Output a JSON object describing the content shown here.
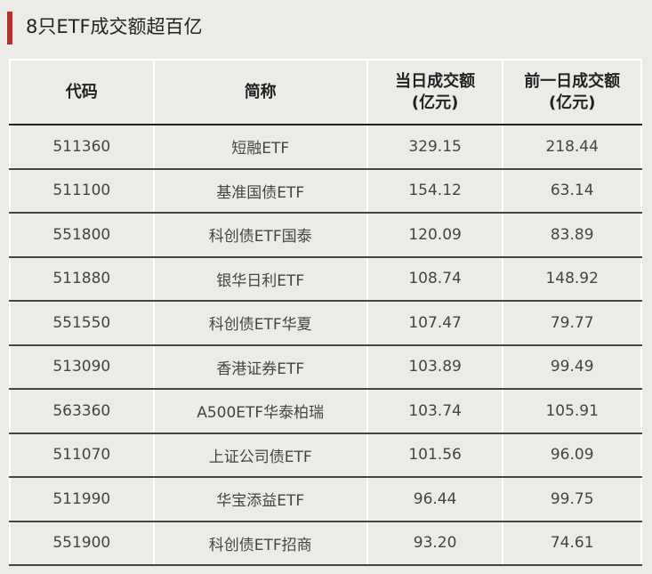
{
  "title": "8只ETF成交额超百亿",
  "colors": {
    "accent": "#b8302c",
    "background": "#ecebe8"
  },
  "table": {
    "headers": {
      "code": "代码",
      "name": "简称",
      "today": "当日成交额",
      "today_unit": "(亿元)",
      "prev": "前一日成交额",
      "prev_unit": "(亿元)"
    },
    "rows": [
      {
        "code": "511360",
        "name": "短融ETF",
        "today": "329.15",
        "prev": "218.44"
      },
      {
        "code": "511100",
        "name": "基准国债ETF",
        "today": "154.12",
        "prev": "63.14"
      },
      {
        "code": "551800",
        "name": "科创债ETF国泰",
        "today": "120.09",
        "prev": "83.89"
      },
      {
        "code": "511880",
        "name": "银华日利ETF",
        "today": "108.74",
        "prev": "148.92"
      },
      {
        "code": "551550",
        "name": "科创债ETF华夏",
        "today": "107.47",
        "prev": "79.77"
      },
      {
        "code": "513090",
        "name": "香港证券ETF",
        "today": "103.89",
        "prev": "99.49"
      },
      {
        "code": "563360",
        "name": "A500ETF华泰柏瑞",
        "today": "103.74",
        "prev": "105.91"
      },
      {
        "code": "511070",
        "name": "上证公司债ETF",
        "today": "101.56",
        "prev": "96.09"
      },
      {
        "code": "511990",
        "name": "华宝添益ETF",
        "today": "96.44",
        "prev": "99.75"
      },
      {
        "code": "551900",
        "name": "科创债ETF招商",
        "today": "93.20",
        "prev": "74.61"
      }
    ]
  }
}
